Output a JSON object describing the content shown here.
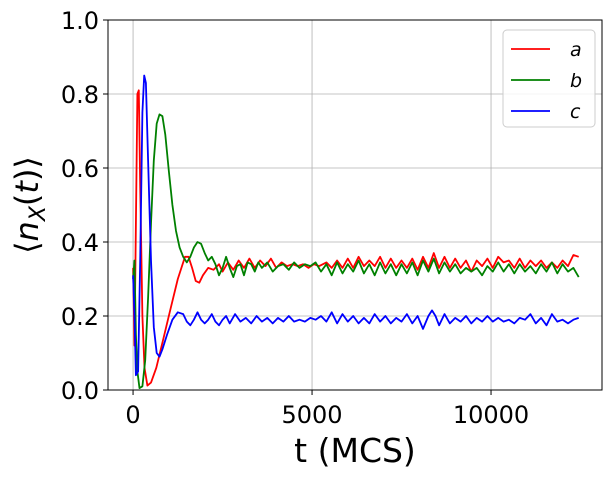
{
  "chart_data": {
    "type": "line",
    "xlabel": "t (MCS)",
    "ylabel": "⟨n_X(t)⟩",
    "xlim": [
      -700,
      13100
    ],
    "ylim": [
      0.0,
      1.0
    ],
    "xticks": [
      0,
      5000,
      10000
    ],
    "xtick_labels": [
      "0",
      "5000",
      "10000"
    ],
    "yticks": [
      0.0,
      0.2,
      0.4,
      0.6,
      0.8,
      1.0
    ],
    "ytick_labels": [
      "0.0",
      "0.2",
      "0.4",
      "0.6",
      "0.8",
      "1.0"
    ],
    "grid": true,
    "legend_position": "top-right",
    "series": [
      {
        "name": "a",
        "color": "#ff0000",
        "points": [
          [
            0,
            0.33
          ],
          [
            40,
            0.12
          ],
          [
            80,
            0.45
          ],
          [
            120,
            0.8
          ],
          [
            160,
            0.81
          ],
          [
            200,
            0.55
          ],
          [
            260,
            0.2
          ],
          [
            320,
            0.06
          ],
          [
            400,
            0.012
          ],
          [
            500,
            0.02
          ],
          [
            650,
            0.06
          ],
          [
            850,
            0.14
          ],
          [
            1050,
            0.22
          ],
          [
            1250,
            0.3
          ],
          [
            1450,
            0.36
          ],
          [
            1550,
            0.36
          ],
          [
            1650,
            0.33
          ],
          [
            1750,
            0.295
          ],
          [
            1850,
            0.29
          ],
          [
            1950,
            0.31
          ],
          [
            2100,
            0.33
          ],
          [
            2250,
            0.325
          ],
          [
            2400,
            0.34
          ],
          [
            2500,
            0.32
          ],
          [
            2650,
            0.345
          ],
          [
            2800,
            0.325
          ],
          [
            2950,
            0.35
          ],
          [
            3100,
            0.33
          ],
          [
            3250,
            0.355
          ],
          [
            3400,
            0.33
          ],
          [
            3550,
            0.35
          ],
          [
            3700,
            0.335
          ],
          [
            3850,
            0.355
          ],
          [
            4000,
            0.33
          ],
          [
            4150,
            0.345
          ],
          [
            4300,
            0.335
          ],
          [
            4450,
            0.34
          ],
          [
            4600,
            0.335
          ],
          [
            4750,
            0.34
          ],
          [
            4900,
            0.33
          ],
          [
            5050,
            0.34
          ],
          [
            5200,
            0.335
          ],
          [
            5400,
            0.345
          ],
          [
            5550,
            0.33
          ],
          [
            5700,
            0.35
          ],
          [
            5850,
            0.33
          ],
          [
            6000,
            0.355
          ],
          [
            6150,
            0.33
          ],
          [
            6300,
            0.36
          ],
          [
            6450,
            0.335
          ],
          [
            6600,
            0.35
          ],
          [
            6750,
            0.335
          ],
          [
            6900,
            0.36
          ],
          [
            7050,
            0.33
          ],
          [
            7200,
            0.355
          ],
          [
            7350,
            0.33
          ],
          [
            7500,
            0.35
          ],
          [
            7650,
            0.33
          ],
          [
            7800,
            0.355
          ],
          [
            7950,
            0.325
          ],
          [
            8100,
            0.36
          ],
          [
            8250,
            0.33
          ],
          [
            8400,
            0.37
          ],
          [
            8550,
            0.33
          ],
          [
            8700,
            0.36
          ],
          [
            8850,
            0.33
          ],
          [
            9000,
            0.355
          ],
          [
            9150,
            0.33
          ],
          [
            9300,
            0.35
          ],
          [
            9450,
            0.32
          ],
          [
            9600,
            0.35
          ],
          [
            9750,
            0.335
          ],
          [
            9900,
            0.355
          ],
          [
            10050,
            0.33
          ],
          [
            10200,
            0.36
          ],
          [
            10350,
            0.345
          ],
          [
            10500,
            0.35
          ],
          [
            10650,
            0.33
          ],
          [
            10800,
            0.355
          ],
          [
            10950,
            0.33
          ],
          [
            11100,
            0.35
          ],
          [
            11250,
            0.335
          ],
          [
            11400,
            0.35
          ],
          [
            11550,
            0.33
          ],
          [
            11700,
            0.345
          ],
          [
            11850,
            0.33
          ],
          [
            12000,
            0.35
          ],
          [
            12150,
            0.335
          ],
          [
            12300,
            0.365
          ],
          [
            12450,
            0.36
          ]
        ]
      },
      {
        "name": "b",
        "color": "#008000",
        "points": [
          [
            0,
            0.3
          ],
          [
            40,
            0.35
          ],
          [
            80,
            0.15
          ],
          [
            120,
            0.05
          ],
          [
            180,
            0.005
          ],
          [
            260,
            0.01
          ],
          [
            340,
            0.08
          ],
          [
            420,
            0.25
          ],
          [
            500,
            0.45
          ],
          [
            580,
            0.62
          ],
          [
            660,
            0.72
          ],
          [
            740,
            0.745
          ],
          [
            820,
            0.74
          ],
          [
            900,
            0.69
          ],
          [
            1000,
            0.59
          ],
          [
            1100,
            0.5
          ],
          [
            1200,
            0.43
          ],
          [
            1300,
            0.385
          ],
          [
            1400,
            0.36
          ],
          [
            1500,
            0.345
          ],
          [
            1600,
            0.36
          ],
          [
            1700,
            0.385
          ],
          [
            1800,
            0.4
          ],
          [
            1900,
            0.395
          ],
          [
            2000,
            0.37
          ],
          [
            2100,
            0.35
          ],
          [
            2200,
            0.36
          ],
          [
            2300,
            0.34
          ],
          [
            2400,
            0.31
          ],
          [
            2500,
            0.33
          ],
          [
            2600,
            0.36
          ],
          [
            2700,
            0.33
          ],
          [
            2800,
            0.305
          ],
          [
            2900,
            0.335
          ],
          [
            3000,
            0.34
          ],
          [
            3100,
            0.31
          ],
          [
            3200,
            0.345
          ],
          [
            3300,
            0.34
          ],
          [
            3400,
            0.32
          ],
          [
            3500,
            0.345
          ],
          [
            3600,
            0.33
          ],
          [
            3750,
            0.345
          ],
          [
            3900,
            0.32
          ],
          [
            4050,
            0.335
          ],
          [
            4200,
            0.34
          ],
          [
            4350,
            0.325
          ],
          [
            4500,
            0.345
          ],
          [
            4650,
            0.33
          ],
          [
            4800,
            0.34
          ],
          [
            4950,
            0.335
          ],
          [
            5100,
            0.345
          ],
          [
            5250,
            0.32
          ],
          [
            5400,
            0.34
          ],
          [
            5550,
            0.31
          ],
          [
            5700,
            0.345
          ],
          [
            5850,
            0.315
          ],
          [
            6000,
            0.34
          ],
          [
            6150,
            0.32
          ],
          [
            6300,
            0.35
          ],
          [
            6450,
            0.315
          ],
          [
            6600,
            0.34
          ],
          [
            6750,
            0.31
          ],
          [
            6900,
            0.345
          ],
          [
            7050,
            0.315
          ],
          [
            7200,
            0.34
          ],
          [
            7350,
            0.31
          ],
          [
            7500,
            0.34
          ],
          [
            7650,
            0.315
          ],
          [
            7800,
            0.345
          ],
          [
            7950,
            0.31
          ],
          [
            8100,
            0.35
          ],
          [
            8250,
            0.32
          ],
          [
            8400,
            0.355
          ],
          [
            8550,
            0.315
          ],
          [
            8700,
            0.345
          ],
          [
            8850,
            0.32
          ],
          [
            9000,
            0.34
          ],
          [
            9150,
            0.315
          ],
          [
            9300,
            0.33
          ],
          [
            9450,
            0.32
          ],
          [
            9600,
            0.33
          ],
          [
            9750,
            0.31
          ],
          [
            9900,
            0.335
          ],
          [
            10050,
            0.32
          ],
          [
            10200,
            0.345
          ],
          [
            10350,
            0.32
          ],
          [
            10500,
            0.34
          ],
          [
            10650,
            0.315
          ],
          [
            10800,
            0.34
          ],
          [
            10950,
            0.32
          ],
          [
            11100,
            0.335
          ],
          [
            11250,
            0.315
          ],
          [
            11400,
            0.34
          ],
          [
            11550,
            0.32
          ],
          [
            11700,
            0.345
          ],
          [
            11850,
            0.315
          ],
          [
            12000,
            0.34
          ],
          [
            12150,
            0.32
          ],
          [
            12300,
            0.33
          ],
          [
            12450,
            0.305
          ]
        ]
      },
      {
        "name": "c",
        "color": "#0000ff",
        "points": [
          [
            0,
            0.31
          ],
          [
            40,
            0.2
          ],
          [
            80,
            0.04
          ],
          [
            140,
            0.05
          ],
          [
            200,
            0.35
          ],
          [
            260,
            0.75
          ],
          [
            310,
            0.85
          ],
          [
            360,
            0.83
          ],
          [
            420,
            0.62
          ],
          [
            500,
            0.35
          ],
          [
            580,
            0.17
          ],
          [
            660,
            0.1
          ],
          [
            740,
            0.09
          ],
          [
            820,
            0.11
          ],
          [
            950,
            0.15
          ],
          [
            1100,
            0.19
          ],
          [
            1250,
            0.21
          ],
          [
            1400,
            0.205
          ],
          [
            1500,
            0.185
          ],
          [
            1600,
            0.175
          ],
          [
            1700,
            0.19
          ],
          [
            1800,
            0.21
          ],
          [
            1900,
            0.19
          ],
          [
            2000,
            0.18
          ],
          [
            2100,
            0.19
          ],
          [
            2200,
            0.205
          ],
          [
            2300,
            0.185
          ],
          [
            2400,
            0.175
          ],
          [
            2500,
            0.19
          ],
          [
            2600,
            0.2
          ],
          [
            2700,
            0.18
          ],
          [
            2850,
            0.205
          ],
          [
            3000,
            0.185
          ],
          [
            3150,
            0.195
          ],
          [
            3300,
            0.18
          ],
          [
            3450,
            0.2
          ],
          [
            3600,
            0.185
          ],
          [
            3750,
            0.195
          ],
          [
            3900,
            0.18
          ],
          [
            4050,
            0.195
          ],
          [
            4200,
            0.185
          ],
          [
            4350,
            0.2
          ],
          [
            4500,
            0.185
          ],
          [
            4650,
            0.19
          ],
          [
            4800,
            0.185
          ],
          [
            4950,
            0.195
          ],
          [
            5100,
            0.19
          ],
          [
            5250,
            0.2
          ],
          [
            5400,
            0.185
          ],
          [
            5550,
            0.21
          ],
          [
            5700,
            0.18
          ],
          [
            5850,
            0.205
          ],
          [
            6000,
            0.185
          ],
          [
            6150,
            0.2
          ],
          [
            6300,
            0.18
          ],
          [
            6450,
            0.195
          ],
          [
            6600,
            0.18
          ],
          [
            6750,
            0.205
          ],
          [
            6900,
            0.185
          ],
          [
            7050,
            0.2
          ],
          [
            7200,
            0.18
          ],
          [
            7350,
            0.195
          ],
          [
            7500,
            0.185
          ],
          [
            7650,
            0.205
          ],
          [
            7800,
            0.18
          ],
          [
            7950,
            0.2
          ],
          [
            8100,
            0.165
          ],
          [
            8250,
            0.2
          ],
          [
            8350,
            0.215
          ],
          [
            8450,
            0.2
          ],
          [
            8550,
            0.175
          ],
          [
            8700,
            0.205
          ],
          [
            8850,
            0.18
          ],
          [
            9000,
            0.195
          ],
          [
            9150,
            0.185
          ],
          [
            9300,
            0.2
          ],
          [
            9450,
            0.18
          ],
          [
            9600,
            0.195
          ],
          [
            9750,
            0.185
          ],
          [
            9900,
            0.2
          ],
          [
            10050,
            0.185
          ],
          [
            10200,
            0.195
          ],
          [
            10350,
            0.185
          ],
          [
            10500,
            0.19
          ],
          [
            10650,
            0.18
          ],
          [
            10800,
            0.195
          ],
          [
            10950,
            0.19
          ],
          [
            11100,
            0.205
          ],
          [
            11250,
            0.18
          ],
          [
            11400,
            0.195
          ],
          [
            11550,
            0.175
          ],
          [
            11700,
            0.205
          ],
          [
            11850,
            0.185
          ],
          [
            12000,
            0.19
          ],
          [
            12150,
            0.18
          ],
          [
            12300,
            0.19
          ],
          [
            12450,
            0.195
          ]
        ]
      }
    ]
  }
}
